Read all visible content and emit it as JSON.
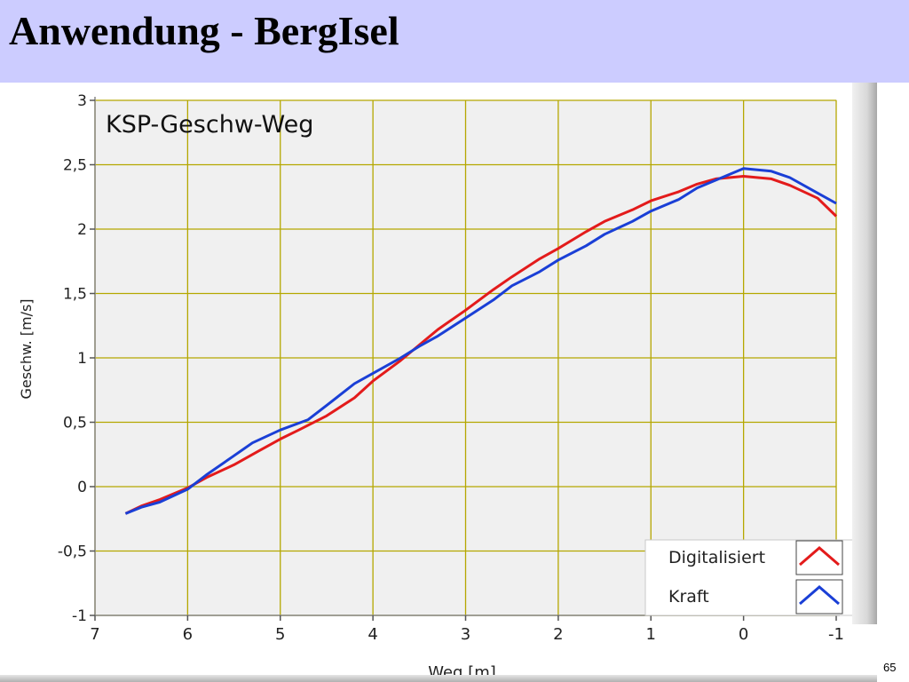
{
  "slide": {
    "title": "Anwendung - BergIsel",
    "number": "65"
  },
  "colors": {
    "title_bar": "#ccccff",
    "plot_background": "#f0f0f0",
    "grid": "#b5a700",
    "series_digitalisiert": "#e31b1b",
    "series_kraft": "#1a3fd6"
  },
  "chart_data": {
    "type": "line",
    "title": "KSP-Geschw-Weg",
    "xlabel": "Weg [m]",
    "ylabel": "Geschw. [m/s]",
    "xlim": [
      7,
      -1
    ],
    "ylim": [
      -1,
      3
    ],
    "x_reversed": true,
    "xticks": [
      7,
      6,
      5,
      4,
      3,
      2,
      1,
      0,
      -1
    ],
    "xtick_labels": [
      "7",
      "6",
      "5",
      "4",
      "3",
      "2",
      "1",
      "0",
      "-1"
    ],
    "yticks": [
      -1,
      -0.5,
      0,
      0.5,
      1,
      1.5,
      2,
      2.5,
      3
    ],
    "ytick_labels": [
      "-1",
      "-0,5",
      "0",
      "0,5",
      "1",
      "1,5",
      "2",
      "2,5",
      "3"
    ],
    "grid": true,
    "legend_position": "bottom-right",
    "series": [
      {
        "name": "Digitalisiert",
        "color": "#e31b1b",
        "x": [
          6.67,
          6.5,
          6.3,
          6.0,
          5.8,
          5.5,
          5.2,
          5.0,
          4.8,
          4.5,
          4.2,
          4.0,
          3.7,
          3.5,
          3.3,
          3.0,
          2.7,
          2.5,
          2.2,
          2.0,
          1.7,
          1.5,
          1.2,
          1.0,
          0.7,
          0.5,
          0.3,
          0.0,
          -0.3,
          -0.5,
          -0.8,
          -1.0
        ],
        "y": [
          -0.21,
          -0.15,
          -0.1,
          -0.01,
          0.07,
          0.17,
          0.29,
          0.37,
          0.44,
          0.55,
          0.69,
          0.82,
          0.98,
          1.1,
          1.22,
          1.37,
          1.53,
          1.63,
          1.77,
          1.85,
          1.98,
          2.06,
          2.15,
          2.22,
          2.29,
          2.35,
          2.39,
          2.41,
          2.39,
          2.34,
          2.24,
          2.1
        ]
      },
      {
        "name": "Kraft",
        "color": "#1a3fd6",
        "x": [
          6.67,
          6.5,
          6.3,
          6.0,
          5.8,
          5.5,
          5.3,
          5.0,
          4.7,
          4.5,
          4.2,
          4.0,
          3.7,
          3.5,
          3.3,
          3.0,
          2.7,
          2.5,
          2.2,
          2.0,
          1.7,
          1.5,
          1.2,
          1.0,
          0.7,
          0.5,
          0.3,
          0.0,
          -0.3,
          -0.5,
          -0.8,
          -1.0
        ],
        "y": [
          -0.21,
          -0.16,
          -0.12,
          -0.02,
          0.09,
          0.24,
          0.34,
          0.44,
          0.52,
          0.63,
          0.8,
          0.88,
          1.0,
          1.09,
          1.17,
          1.31,
          1.45,
          1.56,
          1.67,
          1.76,
          1.87,
          1.96,
          2.06,
          2.14,
          2.23,
          2.32,
          2.38,
          2.47,
          2.45,
          2.4,
          2.28,
          2.2
        ]
      }
    ]
  }
}
